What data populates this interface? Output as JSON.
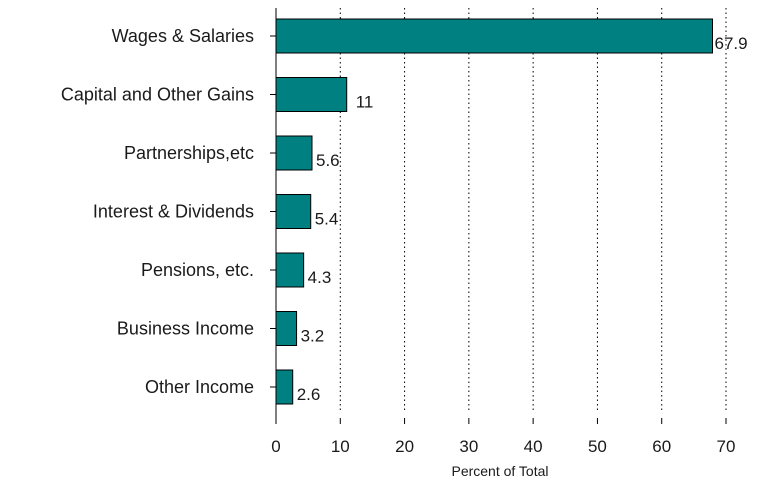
{
  "chart_data": {
    "type": "bar",
    "orientation": "horizontal",
    "categories": [
      "Wages & Salaries",
      "Capital and Other Gains",
      "Partnerships,etc",
      "Interest & Dividends",
      "Pensions, etc.",
      "Business Income",
      "Other Income"
    ],
    "values": [
      67.9,
      11,
      5.6,
      5.4,
      4.3,
      3.2,
      2.6
    ],
    "value_labels": [
      "67.9",
      "11",
      "5.6",
      "5.4",
      "4.3",
      "3.2",
      "2.6"
    ],
    "xlabel": "Percent of Total",
    "xlim": [
      0,
      70
    ],
    "xticks": [
      0,
      10,
      20,
      30,
      40,
      50,
      60,
      70
    ],
    "xtick_labels": [
      "0",
      "10",
      "20",
      "30",
      "40",
      "50",
      "60",
      "70"
    ],
    "grid": "vertical-dotted",
    "legend": "none",
    "bar_color": "#008080",
    "bar_edge_color": "#000000"
  }
}
